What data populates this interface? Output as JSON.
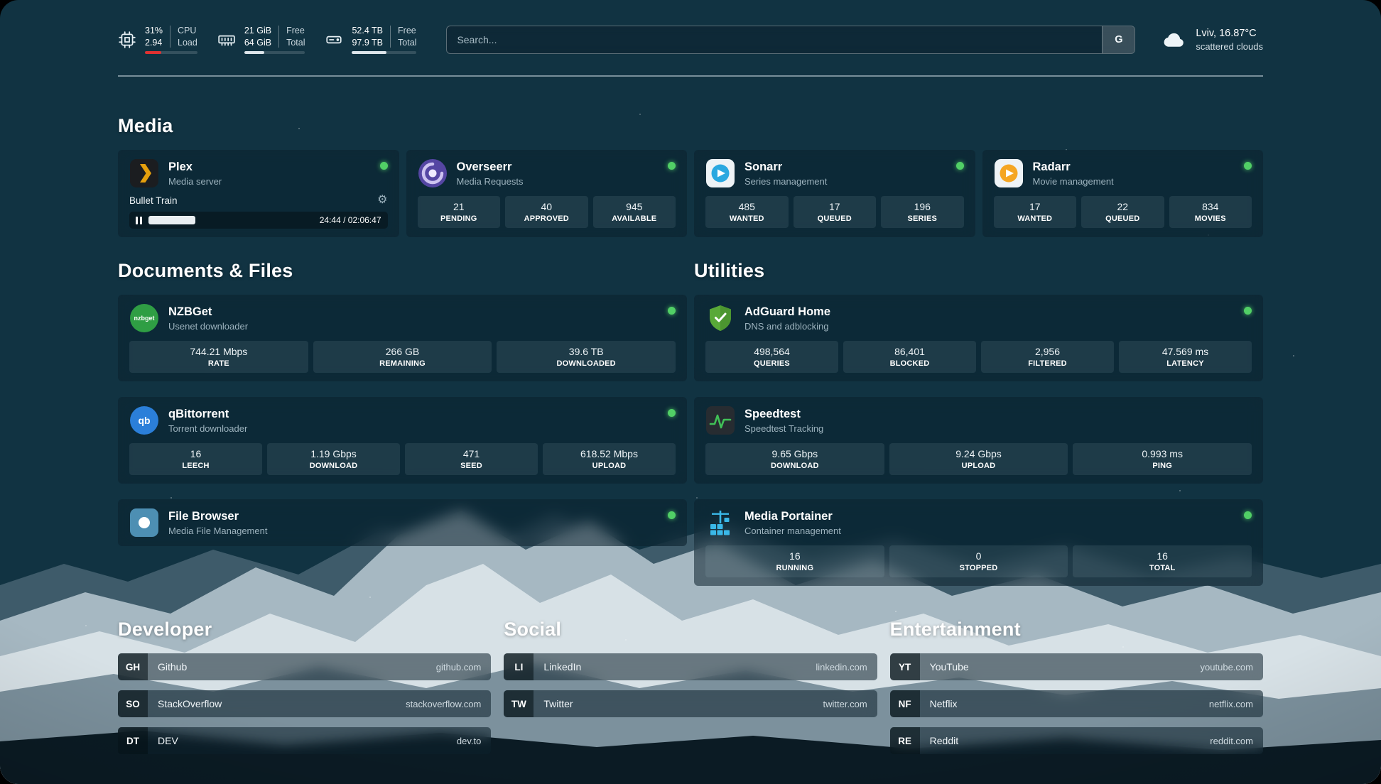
{
  "colors": {
    "status_online": "#51cf66",
    "cpu_bar_fill": "#e03131",
    "memory_bar_fill": "#dde5ea",
    "disk_bar_fill": "#dde5ea",
    "plex_accent": "#e5a00d",
    "adguard_green": "#59a938",
    "speedtest_green": "#40c057",
    "portainer_blue": "#3ab8e8"
  },
  "icons": {
    "gear": "⚙"
  },
  "topbar": {
    "cpu": {
      "value_top": "31%",
      "value_bottom": "2.94",
      "label_top": "CPU",
      "label_bottom": "Load",
      "bar_percent": 31
    },
    "memory": {
      "value_top": "21 GiB",
      "value_bottom": "64 GiB",
      "label_top": "Free",
      "label_bottom": "Total",
      "bar_percent": 33
    },
    "disk": {
      "value_top": "52.4 TB",
      "value_bottom": "97.9 TB",
      "label_top": "Free",
      "label_bottom": "Total",
      "bar_percent": 53
    },
    "search": {
      "placeholder": "Search...",
      "engine_button": "G"
    },
    "weather": {
      "location": "Lviv, 16.87°C",
      "condition": "scattered clouds"
    }
  },
  "sections": {
    "media": "Media",
    "documents": "Documents & Files",
    "utilities": "Utilities",
    "developer": "Developer",
    "social": "Social",
    "entertainment": "Entertainment"
  },
  "apps": {
    "plex": {
      "name": "Plex",
      "desc": "Media server",
      "now_playing": "Bullet Train",
      "time": "24:44 / 02:06:47",
      "progress_percent": 19
    },
    "overseerr": {
      "name": "Overseerr",
      "desc": "Media Requests",
      "stats": [
        {
          "value": "21",
          "label": "PENDING"
        },
        {
          "value": "40",
          "label": "APPROVED"
        },
        {
          "value": "945",
          "label": "AVAILABLE"
        }
      ]
    },
    "sonarr": {
      "name": "Sonarr",
      "desc": "Series management",
      "stats": [
        {
          "value": "485",
          "label": "WANTED"
        },
        {
          "value": "17",
          "label": "QUEUED"
        },
        {
          "value": "196",
          "label": "SERIES"
        }
      ]
    },
    "radarr": {
      "name": "Radarr",
      "desc": "Movie management",
      "stats": [
        {
          "value": "17",
          "label": "WANTED"
        },
        {
          "value": "22",
          "label": "QUEUED"
        },
        {
          "value": "834",
          "label": "MOVIES"
        }
      ]
    },
    "nzbget": {
      "name": "NZBGet",
      "desc": "Usenet downloader",
      "icon_text": "nzbget",
      "stats": [
        {
          "value": "744.21 Mbps",
          "label": "RATE"
        },
        {
          "value": "266 GB",
          "label": "REMAINING"
        },
        {
          "value": "39.6 TB",
          "label": "DOWNLOADED"
        }
      ]
    },
    "qbittorrent": {
      "name": "qBittorrent",
      "desc": "Torrent downloader",
      "icon_text": "qb",
      "stats": [
        {
          "value": "16",
          "label": "LEECH"
        },
        {
          "value": "1.19 Gbps",
          "label": "DOWNLOAD"
        },
        {
          "value": "471",
          "label": "SEED"
        },
        {
          "value": "618.52 Mbps",
          "label": "UPLOAD"
        }
      ]
    },
    "filebrowser": {
      "name": "File Browser",
      "desc": "Media File Management"
    },
    "adguard": {
      "name": "AdGuard Home",
      "desc": "DNS and adblocking",
      "stats": [
        {
          "value": "498,564",
          "label": "QUERIES"
        },
        {
          "value": "86,401",
          "label": "BLOCKED"
        },
        {
          "value": "2,956",
          "label": "FILTERED"
        },
        {
          "value": "47.569 ms",
          "label": "LATENCY"
        }
      ]
    },
    "speedtest": {
      "name": "Speedtest",
      "desc": "Speedtest Tracking",
      "stats": [
        {
          "value": "9.65 Gbps",
          "label": "DOWNLOAD"
        },
        {
          "value": "9.24 Gbps",
          "label": "UPLOAD"
        },
        {
          "value": "0.993 ms",
          "label": "PING"
        }
      ]
    },
    "portainer": {
      "name": "Media Portainer",
      "desc": "Container management",
      "stats": [
        {
          "value": "16",
          "label": "RUNNING"
        },
        {
          "value": "0",
          "label": "STOPPED"
        },
        {
          "value": "16",
          "label": "TOTAL"
        }
      ]
    }
  },
  "bookmarks": {
    "developer": [
      {
        "abbr": "GH",
        "name": "Github",
        "url": "github.com"
      },
      {
        "abbr": "SO",
        "name": "StackOverflow",
        "url": "stackoverflow.com"
      },
      {
        "abbr": "DT",
        "name": "DEV",
        "url": "dev.to"
      }
    ],
    "social": [
      {
        "abbr": "LI",
        "name": "LinkedIn",
        "url": "linkedin.com"
      },
      {
        "abbr": "TW",
        "name": "Twitter",
        "url": "twitter.com"
      }
    ],
    "entertainment": [
      {
        "abbr": "YT",
        "name": "YouTube",
        "url": "youtube.com"
      },
      {
        "abbr": "NF",
        "name": "Netflix",
        "url": "netflix.com"
      },
      {
        "abbr": "RE",
        "name": "Reddit",
        "url": "reddit.com"
      }
    ]
  }
}
